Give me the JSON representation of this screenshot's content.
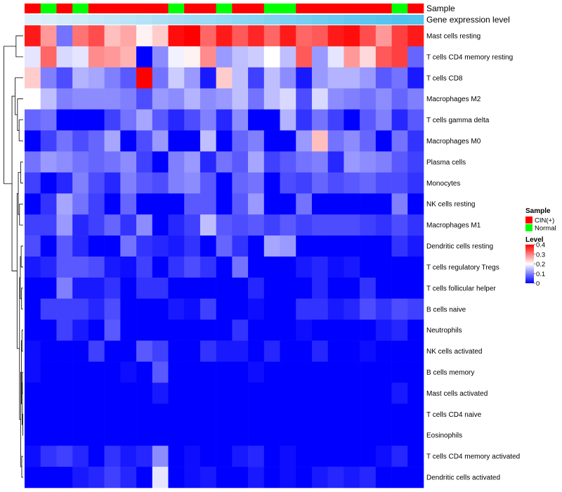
{
  "chart_data": {
    "type": "heatmap",
    "title": "",
    "column_annotations": [
      {
        "name": "Sample",
        "values": [
          "CIN(+)",
          "Normal",
          "CIN(+)",
          "Normal",
          "CIN(+)",
          "CIN(+)",
          "CIN(+)",
          "CIN(+)",
          "CIN(+)",
          "Normal",
          "CIN(+)",
          "CIN(+)",
          "Normal",
          "CIN(+)",
          "CIN(+)",
          "Normal",
          "Normal",
          "CIN(+)",
          "CIN(+)",
          "CIN(+)",
          "CIN(+)",
          "CIN(+)",
          "CIN(+)",
          "Normal",
          "CIN(+)"
        ]
      },
      {
        "name": "Gene expression level",
        "values": [
          0.04,
          0.08,
          0.12,
          0.17,
          0.21,
          0.25,
          0.29,
          0.33,
          0.38,
          0.42,
          0.46,
          0.5,
          0.54,
          0.58,
          0.62,
          0.67,
          0.71,
          0.75,
          0.79,
          0.83,
          0.88,
          0.92,
          0.96,
          1.0,
          0.98
        ]
      }
    ],
    "rows": [
      "Mast cells resting",
      "T cells CD4 memory resting",
      "T cells CD8",
      "Macrophages M2",
      "T cells gamma delta",
      "Macrophages M0",
      "Plasma cells",
      "Monocytes",
      "NK cells resting",
      "Macrophages M1",
      "Dendritic cells resting",
      "T cells regulatory  Tregs",
      "T cells follicular helper",
      "B cells naive",
      "Neutrophils",
      "NK cells activated",
      "B cells memory",
      "Mast cells activated",
      "T cells CD4 naive",
      "Eosinophils",
      "T cells CD4 memory activated",
      "Dendritic cells activated"
    ],
    "values": [
      [
        0.38,
        0.28,
        0.09,
        0.31,
        0.34,
        0.25,
        0.27,
        0.21,
        0.24,
        0.39,
        0.4,
        0.32,
        0.38,
        0.33,
        0.37,
        0.32,
        0.38,
        0.32,
        0.33,
        0.38,
        0.39,
        0.34,
        0.28,
        0.35,
        0.38
      ],
      [
        0.18,
        0.32,
        0.17,
        0.18,
        0.29,
        0.28,
        0.26,
        0.0,
        0.11,
        0.19,
        0.21,
        0.29,
        0.12,
        0.15,
        0.16,
        0.2,
        0.15,
        0.33,
        0.12,
        0.18,
        0.28,
        0.23,
        0.33,
        0.35,
        0.08
      ],
      [
        0.24,
        0.1,
        0.06,
        0.14,
        0.13,
        0.1,
        0.07,
        0.4,
        0.09,
        0.16,
        0.12,
        0.02,
        0.24,
        0.15,
        0.05,
        0.15,
        0.11,
        0.02,
        0.12,
        0.14,
        0.14,
        0.12,
        0.07,
        0.09,
        0.02
      ],
      [
        0.2,
        0.15,
        0.1,
        0.11,
        0.11,
        0.11,
        0.1,
        0.06,
        0.12,
        0.11,
        0.14,
        0.11,
        0.12,
        0.15,
        0.09,
        0.15,
        0.17,
        0.06,
        0.17,
        0.11,
        0.1,
        0.09,
        0.11,
        0.08,
        0.1
      ],
      [
        0.08,
        0.09,
        0.0,
        0.0,
        0.0,
        0.05,
        0.09,
        0.13,
        0.07,
        0.03,
        0.06,
        0.1,
        0.03,
        0.11,
        0.0,
        0.0,
        0.14,
        0.04,
        0.09,
        0.05,
        0.0,
        0.07,
        0.1,
        0.03,
        0.07
      ],
      [
        0.0,
        0.05,
        0.09,
        0.06,
        0.08,
        0.13,
        0.0,
        0.06,
        0.12,
        0.0,
        0.0,
        0.15,
        0.0,
        0.08,
        0.1,
        0.0,
        0.0,
        0.12,
        0.25,
        0.09,
        0.11,
        0.08,
        0.0,
        0.09,
        0.04
      ],
      [
        0.09,
        0.12,
        0.11,
        0.09,
        0.08,
        0.09,
        0.11,
        0.05,
        0.0,
        0.1,
        0.12,
        0.03,
        0.09,
        0.07,
        0.13,
        0.05,
        0.07,
        0.09,
        0.1,
        0.03,
        0.12,
        0.11,
        0.1,
        0.07,
        0.05
      ],
      [
        0.05,
        0.0,
        0.03,
        0.1,
        0.06,
        0.03,
        0.1,
        0.07,
        0.06,
        0.1,
        0.11,
        0.07,
        0.0,
        0.08,
        0.09,
        0.0,
        0.06,
        0.05,
        0.08,
        0.06,
        0.07,
        0.08,
        0.06,
        0.06,
        0.04
      ],
      [
        0.0,
        0.04,
        0.13,
        0.09,
        0.05,
        0.0,
        0.08,
        0.0,
        0.0,
        0.0,
        0.07,
        0.07,
        0.0,
        0.07,
        0.12,
        0.0,
        0.0,
        0.09,
        0.0,
        0.0,
        0.0,
        0.0,
        0.0,
        0.1,
        0.0
      ],
      [
        0.05,
        0.05,
        0.12,
        0.03,
        0.05,
        0.08,
        0.04,
        0.11,
        0.0,
        0.03,
        0.05,
        0.15,
        0.07,
        0.06,
        0.07,
        0.05,
        0.07,
        0.05,
        0.06,
        0.06,
        0.06,
        0.05,
        0.04,
        0.06,
        0.04
      ],
      [
        0.06,
        0.0,
        0.07,
        0.03,
        0.0,
        0.0,
        0.09,
        0.04,
        0.03,
        0.02,
        0.04,
        0.0,
        0.08,
        0.04,
        0.0,
        0.13,
        0.12,
        0.0,
        0.0,
        0.0,
        0.0,
        0.0,
        0.0,
        0.04,
        0.02
      ],
      [
        0.02,
        0.03,
        0.07,
        0.07,
        0.06,
        0.02,
        0.01,
        0.05,
        0.0,
        0.04,
        0.06,
        0.04,
        0.0,
        0.09,
        0.0,
        0.0,
        0.0,
        0.02,
        0.03,
        0.01,
        0.02,
        0.0,
        0.0,
        0.0,
        0.0
      ],
      [
        0.0,
        0.0,
        0.1,
        0.02,
        0.02,
        0.04,
        0.0,
        0.04,
        0.04,
        0.0,
        0.0,
        0.0,
        0.0,
        0.0,
        0.03,
        0.0,
        0.0,
        0.0,
        0.03,
        0.0,
        0.0,
        0.04,
        0.0,
        0.0,
        0.0
      ],
      [
        0.0,
        0.05,
        0.05,
        0.05,
        0.03,
        0.06,
        0.0,
        0.0,
        0.0,
        0.02,
        0.01,
        0.05,
        0.0,
        0.0,
        0.01,
        0.0,
        0.0,
        0.04,
        0.04,
        0.02,
        0.03,
        0.06,
        0.04,
        0.06,
        0.05
      ],
      [
        0.0,
        0.0,
        0.05,
        0.02,
        0.0,
        0.07,
        0.0,
        0.0,
        0.0,
        0.0,
        0.0,
        0.0,
        0.0,
        0.04,
        0.0,
        0.0,
        0.0,
        0.01,
        0.0,
        0.0,
        0.0,
        0.0,
        0.02,
        0.03,
        0.0
      ],
      [
        0.01,
        0.0,
        0.0,
        0.0,
        0.05,
        0.0,
        0.0,
        0.07,
        0.05,
        0.0,
        0.0,
        0.04,
        0.02,
        0.02,
        0.0,
        0.03,
        0.0,
        0.0,
        0.03,
        0.0,
        0.0,
        0.01,
        0.0,
        0.0,
        0.0
      ],
      [
        0.01,
        0.0,
        0.0,
        0.0,
        0.0,
        0.0,
        0.01,
        0.0,
        0.07,
        0.0,
        0.0,
        0.0,
        0.0,
        0.0,
        0.01,
        0.0,
        0.0,
        0.0,
        0.0,
        0.0,
        0.0,
        0.0,
        0.0,
        0.0,
        0.0
      ],
      [
        0.0,
        0.0,
        0.0,
        0.0,
        0.0,
        0.0,
        0.0,
        0.0,
        0.02,
        0.0,
        0.0,
        0.0,
        0.0,
        0.0,
        0.0,
        0.0,
        0.0,
        0.0,
        0.0,
        0.0,
        0.0,
        0.0,
        0.0,
        0.02,
        0.0
      ],
      [
        0.0,
        0.0,
        0.0,
        0.0,
        0.0,
        0.0,
        0.0,
        0.0,
        0.0,
        0.0,
        0.0,
        0.0,
        0.0,
        0.0,
        0.0,
        0.0,
        0.0,
        0.0,
        0.0,
        0.0,
        0.0,
        0.0,
        0.0,
        0.0,
        0.0
      ],
      [
        0.0,
        0.0,
        0.0,
        0.0,
        0.0,
        0.0,
        0.0,
        0.0,
        0.0,
        0.0,
        0.0,
        0.0,
        0.0,
        0.0,
        0.0,
        0.0,
        0.0,
        0.0,
        0.0,
        0.0,
        0.0,
        0.0,
        0.0,
        0.0,
        0.0
      ],
      [
        0.01,
        0.04,
        0.05,
        0.03,
        0.0,
        0.04,
        0.02,
        0.03,
        0.11,
        0.0,
        0.01,
        0.0,
        0.0,
        0.02,
        0.03,
        0.0,
        0.01,
        0.0,
        0.0,
        0.0,
        0.0,
        0.0,
        0.01,
        0.03,
        0.0
      ],
      [
        0.0,
        0.0,
        0.0,
        0.02,
        0.03,
        0.05,
        0.03,
        0.0,
        0.18,
        0.0,
        0.01,
        0.02,
        0.0,
        0.0,
        0.02,
        0.0,
        0.01,
        0.0,
        0.02,
        0.03,
        0.02,
        0.03,
        0.0,
        0.0,
        0.0
      ]
    ],
    "color_scale": {
      "min": 0,
      "max": 0.4,
      "low": "#0000ff",
      "mid": "#ffffff",
      "high": "#ff0000"
    },
    "dendrogram": "rows clustered (left side)",
    "legends": [
      {
        "title": "Sample",
        "entries": [
          {
            "label": "CIN(+)",
            "color": "#ff0000"
          },
          {
            "label": "Normal",
            "color": "#00ff00"
          }
        ]
      },
      {
        "title": "Level",
        "ticks": [
          "0.4",
          "0.3",
          "0.2",
          "0.1",
          "0"
        ],
        "tick_values": [
          0.4,
          0.3,
          0.2,
          0.1,
          0
        ]
      }
    ],
    "annotation_colors": {
      "CIN(+)": "#ff0000",
      "Normal": "#00ff00",
      "gene_low": "#e6f2fa",
      "gene_high": "#4fc3f0"
    },
    "legend_placement": "right"
  }
}
